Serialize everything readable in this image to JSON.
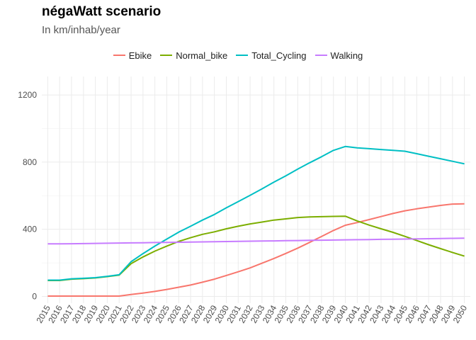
{
  "chart_data": {
    "type": "line",
    "title": "négaWatt scenario",
    "subtitle": "In km/inhab/year",
    "xlabel": "",
    "ylabel": "",
    "x": [
      "2015",
      "2016",
      "2017",
      "2018",
      "2019",
      "2020",
      "2021",
      "2022",
      "2023",
      "2024",
      "2025",
      "2026",
      "2027",
      "2028",
      "2029",
      "2030",
      "2031",
      "2032",
      "2033",
      "2034",
      "2035",
      "2036",
      "2037",
      "2038",
      "2039",
      "2040",
      "2041",
      "2042",
      "2043",
      "2044",
      "2045",
      "2046",
      "2047",
      "2048",
      "2049",
      "2050"
    ],
    "ylim": [
      -40,
      1310
    ],
    "yticks": [
      0,
      400,
      800,
      1200
    ],
    "grid": true,
    "legend_position": "top",
    "series": [
      {
        "name": "Ebike",
        "color": "#F8766D",
        "values": [
          2,
          2,
          2,
          2,
          2,
          2,
          2,
          12,
          20,
          30,
          42,
          55,
          68,
          85,
          103,
          125,
          147,
          170,
          198,
          226,
          256,
          288,
          322,
          357,
          393,
          424,
          440,
          458,
          476,
          494,
          510,
          522,
          532,
          542,
          550,
          552
        ]
      },
      {
        "name": "Normal_bike",
        "color": "#7CAE00",
        "values": [
          95,
          95,
          103,
          106,
          110,
          118,
          127,
          195,
          235,
          270,
          300,
          328,
          350,
          370,
          385,
          403,
          418,
          432,
          443,
          455,
          462,
          470,
          474,
          475,
          477,
          478,
          450,
          425,
          403,
          382,
          358,
          333,
          308,
          285,
          262,
          240
        ]
      },
      {
        "name": "Total_Cycling",
        "color": "#00BFC4",
        "values": [
          97,
          97,
          105,
          108,
          112,
          120,
          129,
          207,
          255,
          300,
          342,
          383,
          418,
          455,
          488,
          528,
          565,
          602,
          641,
          681,
          718,
          758,
          796,
          832,
          870,
          893,
          885,
          880,
          875,
          870,
          865,
          850,
          835,
          820,
          805,
          790
        ]
      },
      {
        "name": "Walking",
        "color": "#C77CFF",
        "values": [
          313,
          313,
          314,
          315,
          316,
          317,
          318,
          319,
          320,
          321,
          322,
          323,
          324,
          325,
          326,
          327,
          328,
          329,
          330,
          331,
          332,
          333,
          334,
          335,
          336,
          337,
          338,
          339,
          340,
          341,
          342,
          343,
          344,
          345,
          346,
          347
        ]
      }
    ]
  }
}
